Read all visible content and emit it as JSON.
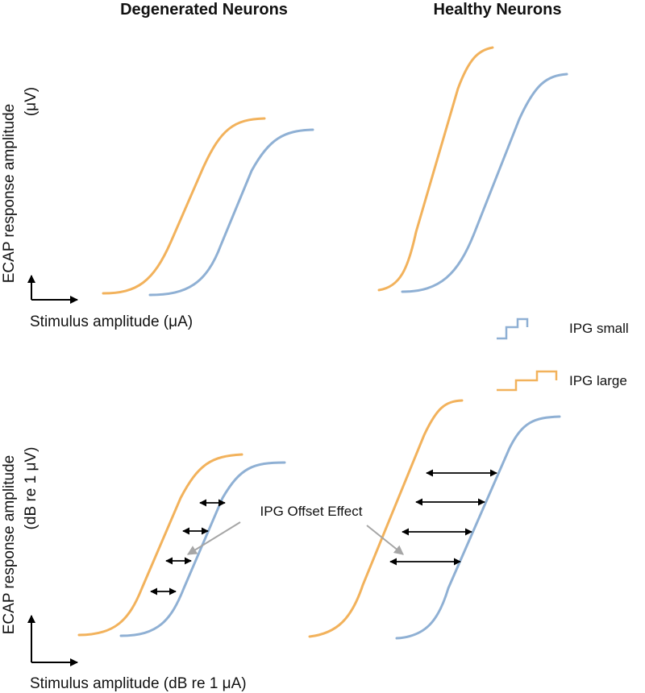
{
  "titles": {
    "degenerated": "Degenerated Neurons",
    "healthy": "Healthy Neurons"
  },
  "top_panel": {
    "y_axis_label": "ECAP response amplitude",
    "y_axis_unit": "(μV)",
    "x_axis_label": "Stimulus amplitude (μA)"
  },
  "bottom_panel": {
    "y_axis_label": "ECAP response amplitude",
    "y_axis_unit": "(dB re 1 μV)",
    "x_axis_label": "Stimulus amplitude (dB re 1 μA)"
  },
  "legend": {
    "ipg_small": "IPG small",
    "ipg_large": "IPG large"
  },
  "annotation": "IPG Offset Effect",
  "colors": {
    "ipg_small": "#8fb0d4",
    "ipg_large": "#f2b25c",
    "arrow": "#000000",
    "pointer": "#a6a6a6"
  }
}
